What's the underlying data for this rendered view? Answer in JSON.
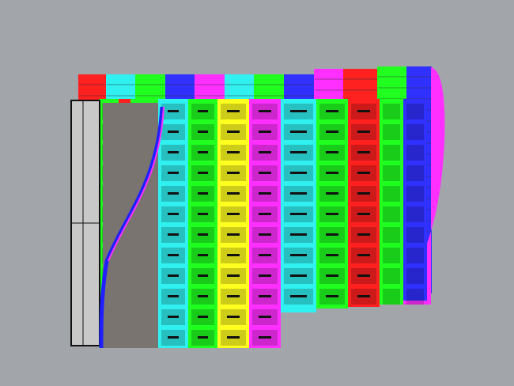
{
  "viewport": {
    "background": "#a2a6aa"
  },
  "back_columns": [
    "#ff2020",
    "#30f0f0",
    "#20ff20",
    "#3030ff",
    "#ff30ff",
    "#30f0f0",
    "#20ff20",
    "#3030ff",
    "#ff30ff",
    "#ff2020",
    "#20ff20",
    "#3030ff"
  ],
  "front_columns": [
    "#20ff20",
    "#ff2020",
    "#20ff20",
    "#30f0f0",
    "#20ff20",
    "#ffff20",
    "#ff30ff",
    "#30f0f0",
    "#20ff20",
    "#ff2020",
    "#20ff20",
    "#3030ff"
  ],
  "cell_fill_opacity": 0.55
}
